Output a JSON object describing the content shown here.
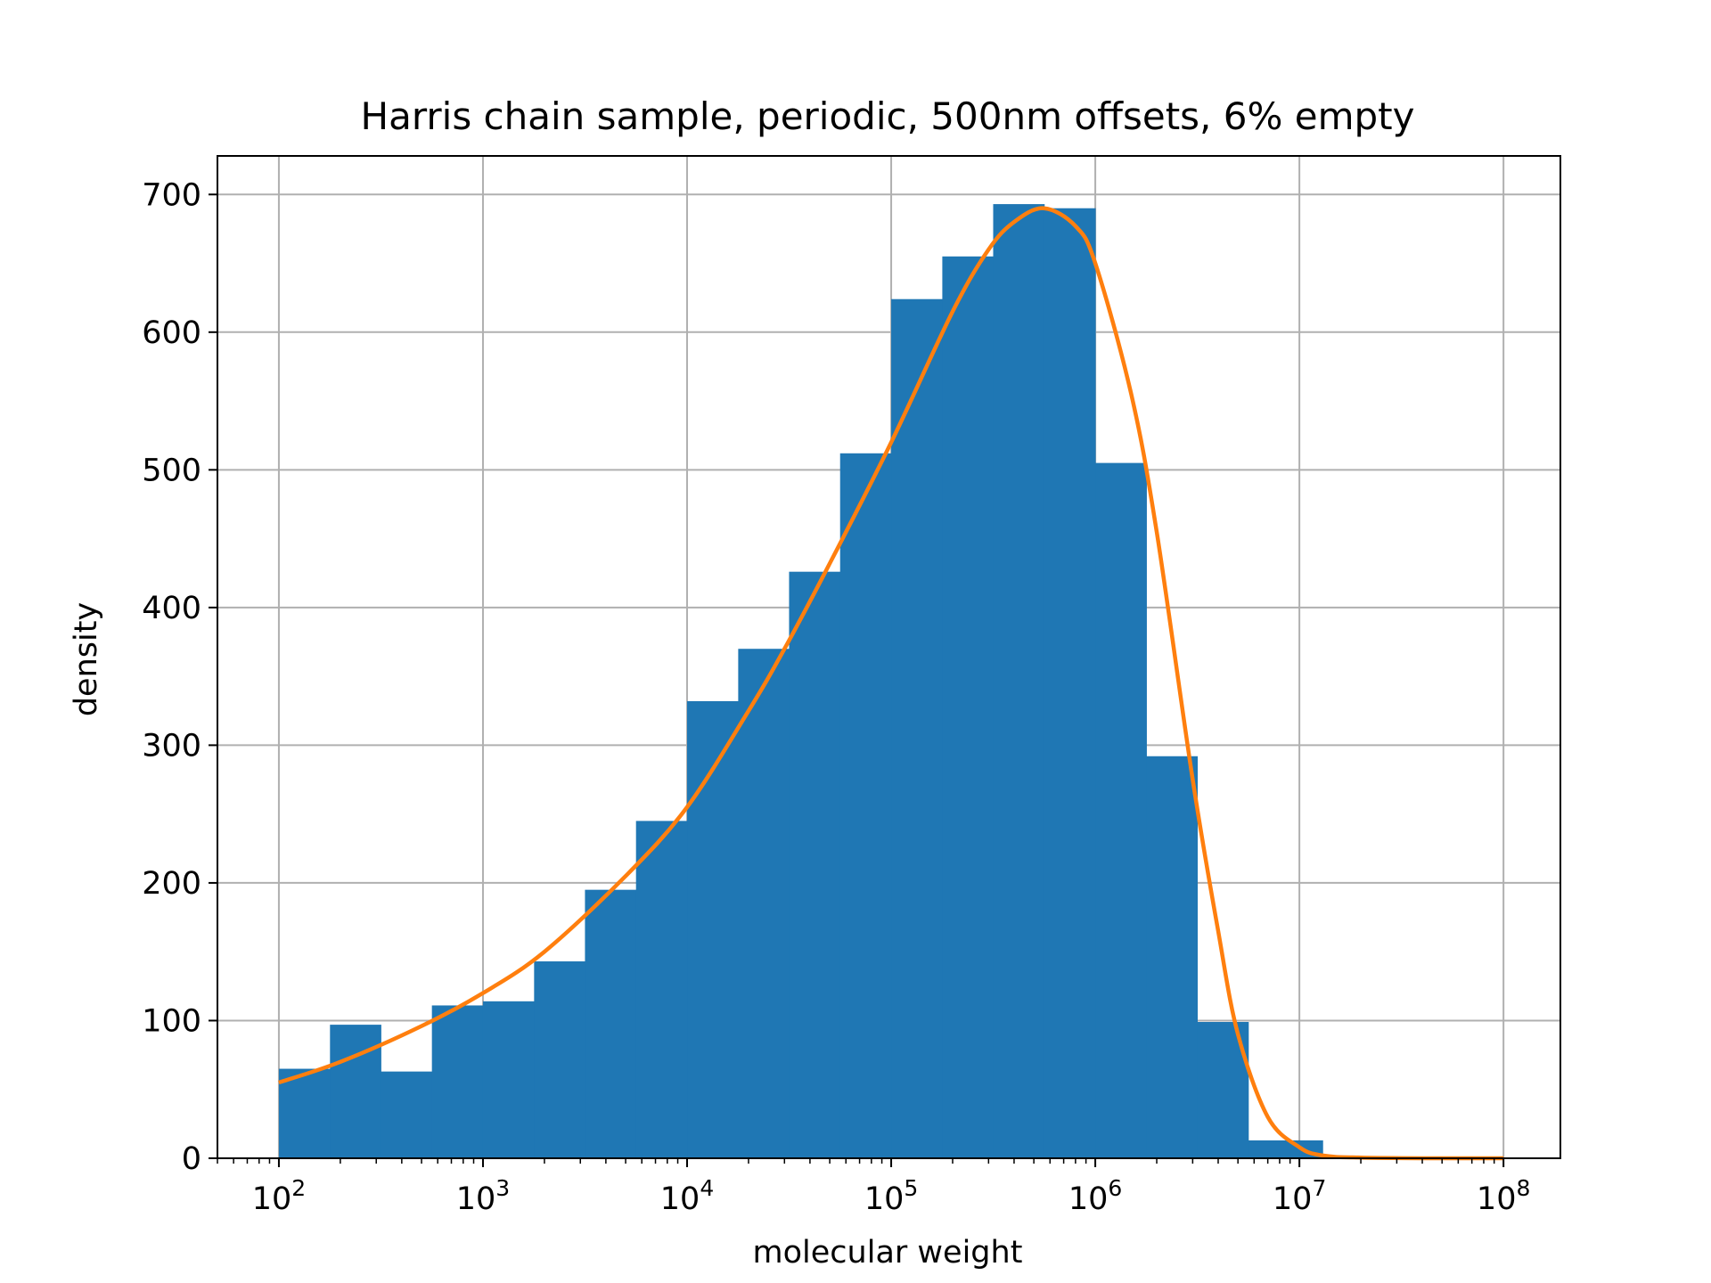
{
  "chart_data": {
    "type": "bar",
    "title": "Harris chain sample, periodic, 500nm offsets, 6% empty",
    "xlabel": "molecular weight",
    "ylabel": "density",
    "xscale": "log",
    "xlim": [
      50,
      190000000
    ],
    "ylim": [
      0,
      728
    ],
    "grid": true,
    "yticks": [
      0,
      100,
      200,
      300,
      400,
      500,
      600,
      700
    ],
    "xticks": [
      {
        "value": 100,
        "base": "10",
        "exp": "2"
      },
      {
        "value": 1000,
        "base": "10",
        "exp": "3"
      },
      {
        "value": 10000,
        "base": "10",
        "exp": "4"
      },
      {
        "value": 100000,
        "base": "10",
        "exp": "5"
      },
      {
        "value": 1000000,
        "base": "10",
        "exp": "6"
      },
      {
        "value": 10000000,
        "base": "10",
        "exp": "7"
      },
      {
        "value": 100000000,
        "base": "10",
        "exp": "8"
      }
    ],
    "histogram": {
      "color": "#1f77b4",
      "bin_edges": [
        100,
        178,
        316,
        562,
        1000,
        1780,
        3160,
        5620,
        10000,
        17800,
        31600,
        56200,
        100000,
        178000,
        316000,
        562000,
        1000000,
        1780000,
        3160000,
        5620000,
        10000000,
        13000000
      ],
      "values": [
        65,
        97,
        63,
        111,
        114,
        143,
        195,
        245,
        332,
        370,
        426,
        512,
        624,
        655,
        693,
        690,
        505,
        292,
        99,
        13,
        13
      ]
    },
    "curve": {
      "color": "#ff7f0e",
      "x": [
        100,
        200,
        500,
        1000,
        2000,
        5000,
        10000,
        20000,
        30000,
        50000,
        100000,
        200000,
        300000,
        400000,
        560000,
        800000,
        1000000,
        1500000,
        2000000,
        3000000,
        4000000,
        5000000,
        7000000,
        10000000,
        13000000,
        20000000,
        50000000,
        100000000
      ],
      "y": [
        55,
        70,
        96,
        120,
        150,
        205,
        255,
        325,
        370,
        432,
        520,
        615,
        660,
        680,
        690,
        677,
        650,
        555,
        455,
        275,
        165,
        90,
        30,
        8,
        2,
        0.5,
        0,
        0
      ]
    }
  }
}
